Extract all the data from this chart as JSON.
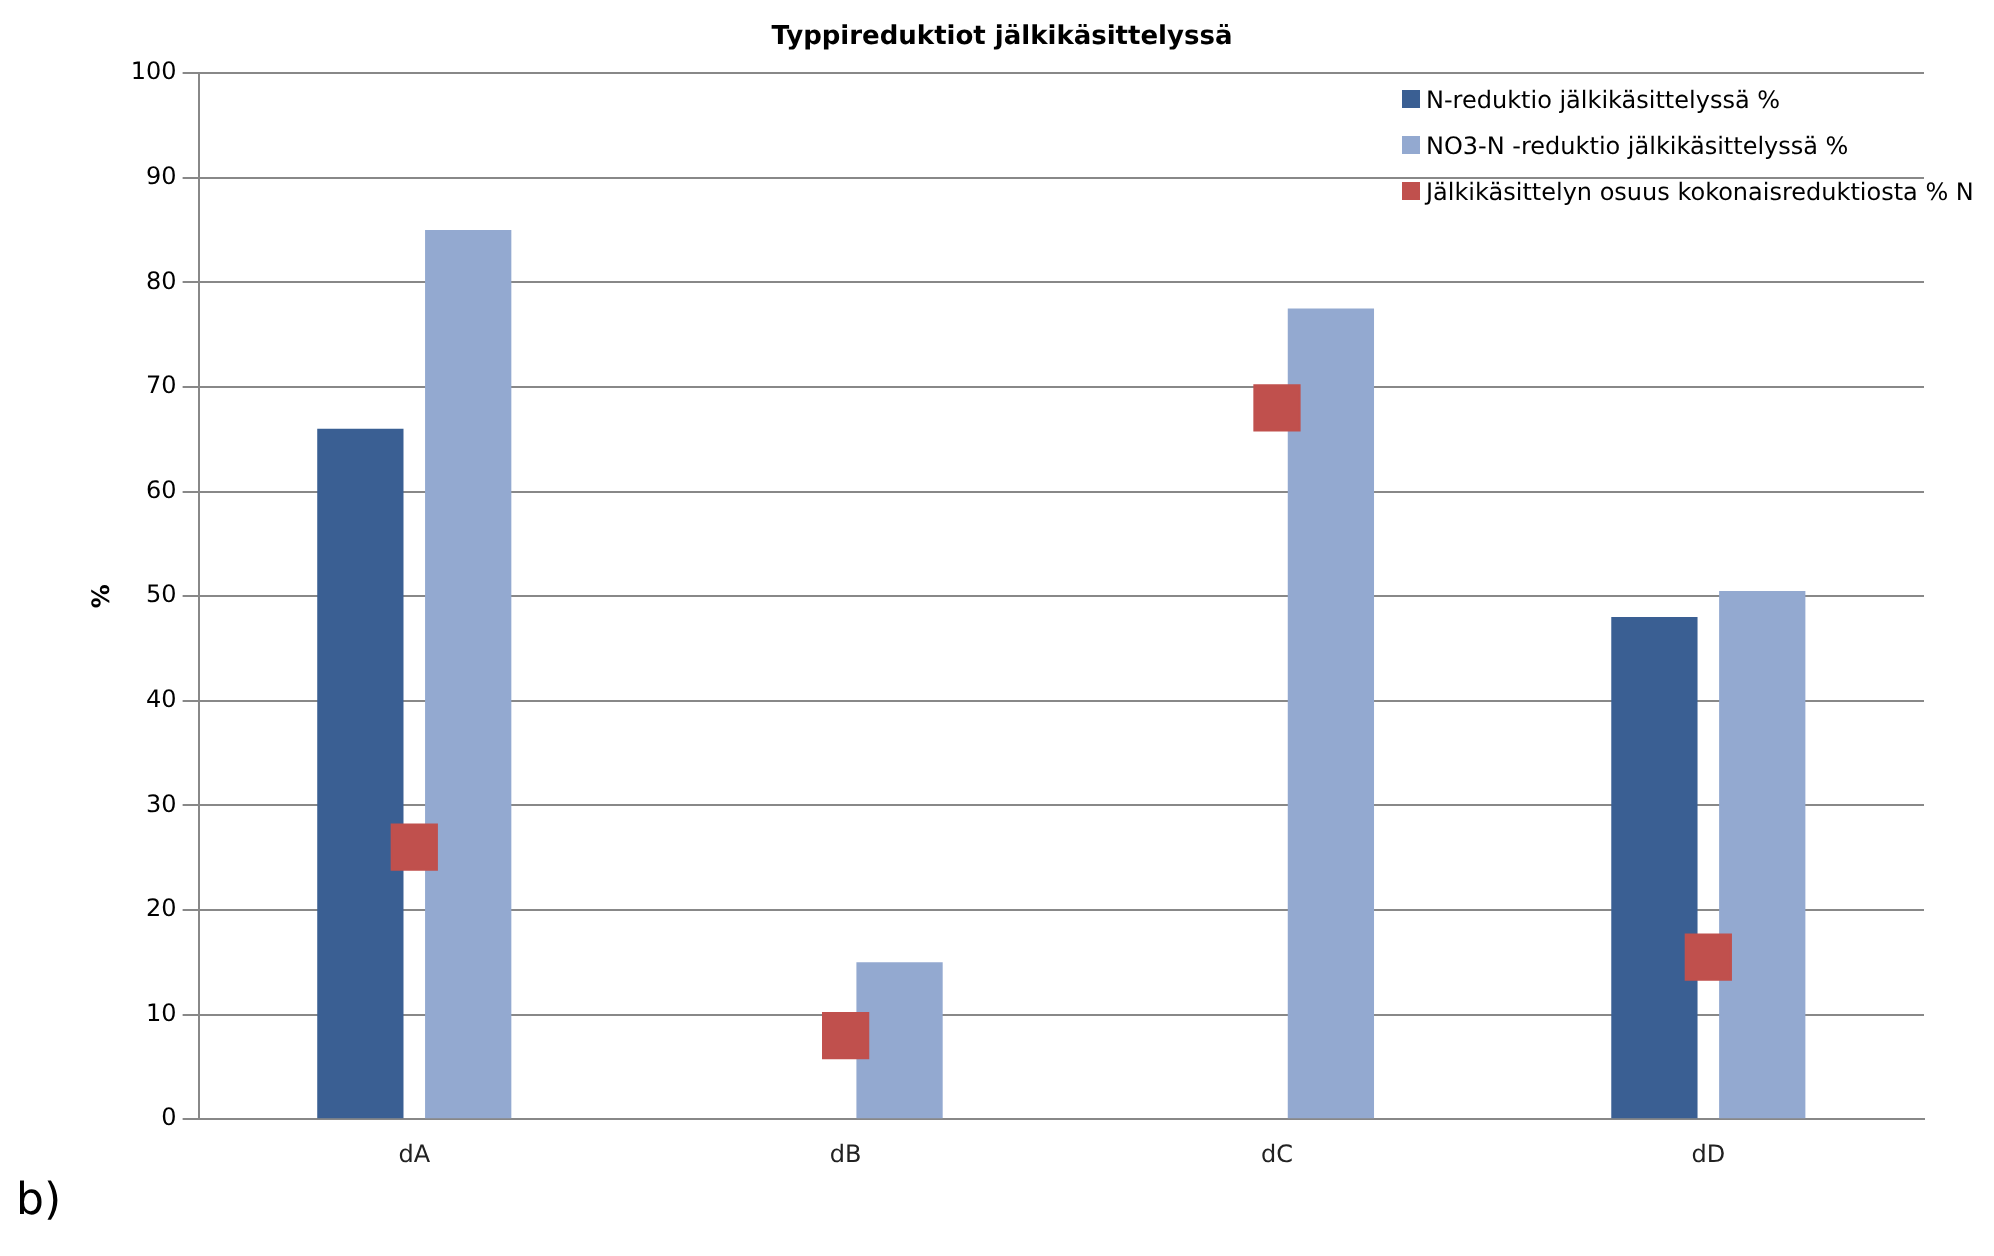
{
  "chart_data": {
    "type": "bar",
    "title": "Typpireduktiot jälkikäsittelyssä",
    "ylabel": "%",
    "categories": [
      "dA",
      "dB",
      "dC",
      "dD"
    ],
    "series": [
      {
        "name": "N-reduktio jälkikäsittelyssä %",
        "color": "#3a5f93",
        "values": [
          66,
          null,
          null,
          48
        ]
      },
      {
        "name": "NO3-N -reduktio jälkikäsittelyssä %",
        "color": "#93a9d0",
        "values": [
          85,
          15,
          77.5,
          50.5
        ]
      },
      {
        "name": "Jälkikäsittelyn osuus kokonaisreduktiosta % N",
        "color": "#c0504d",
        "type": "scatter",
        "values": [
          26,
          8,
          68,
          15.5
        ]
      }
    ],
    "marker": "square",
    "ylim": [
      0,
      100
    ],
    "yticks": [
      0,
      10,
      20,
      30,
      40,
      50,
      60,
      70,
      80,
      90,
      100
    ],
    "grid": "y",
    "legend": "top right",
    "annotations": [
      "b)"
    ]
  }
}
